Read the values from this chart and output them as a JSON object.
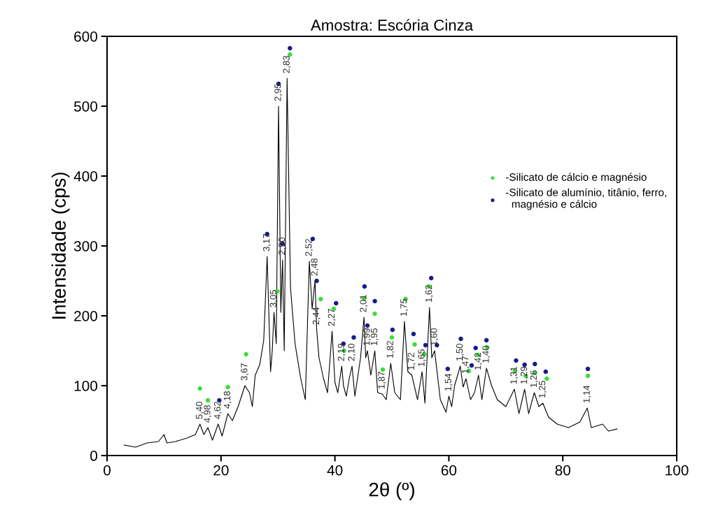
{
  "chart_data": {
    "type": "line",
    "title": "Amostra: Escória Cinza",
    "xlabel": "2θ (º)",
    "ylabel": "Intensidade (cps)",
    "xlim": [
      0,
      100
    ],
    "ylim": [
      0,
      600
    ],
    "xticks": [
      0,
      20,
      40,
      60,
      80,
      100
    ],
    "yticks": [
      0,
      100,
      200,
      300,
      400,
      500,
      600
    ],
    "grid": false,
    "legend": "right",
    "series": [
      {
        "type": "line",
        "color": "#000000",
        "marker": "none",
        "x": [
          3,
          5,
          7,
          9,
          10,
          10.5,
          12,
          14,
          15.5,
          16.3,
          17,
          17.7,
          18.5,
          19.5,
          20.2,
          21.2,
          22,
          23,
          24.2,
          25,
          25.5,
          26,
          26.8,
          27.5,
          28.1,
          28.7,
          29.0,
          29.3,
          29.7,
          30.1,
          30.5,
          30.8,
          31.1,
          31.6,
          32.2,
          33,
          34,
          34.8,
          35.5,
          36,
          36.5,
          36.8,
          37.2,
          38,
          38.7,
          39.5,
          40,
          40.5,
          41.2,
          41.5,
          42,
          42.5,
          43,
          43.5,
          44.5,
          45.1,
          45.4,
          45.7,
          46.3,
          47,
          47.5,
          48.3,
          49,
          49.8,
          50.5,
          51.5,
          52.2,
          52.8,
          53.5,
          54.5,
          55.3,
          55.8,
          56.6,
          57,
          57.5,
          58.5,
          59.5,
          60,
          60.5,
          61,
          62,
          62.5,
          63,
          63.8,
          64.5,
          65.2,
          65.8,
          66.6,
          67.5,
          68.5,
          70,
          71.5,
          72.3,
          73.3,
          74,
          75,
          75.8,
          76.5,
          77.5,
          79,
          81,
          83,
          84.3,
          85,
          87,
          88,
          89.5
        ],
        "values": [
          15,
          12,
          18,
          20,
          30,
          18,
          20,
          25,
          30,
          45,
          30,
          40,
          22,
          45,
          28,
          60,
          50,
          70,
          100,
          90,
          70,
          115,
          130,
          165,
          285,
          120,
          150,
          205,
          160,
          500,
          205,
          280,
          150,
          540,
          240,
          160,
          110,
          80,
          278,
          210,
          250,
          180,
          140,
          110,
          90,
          178,
          105,
          90,
          128,
          100,
          85,
          110,
          128,
          85,
          140,
          198,
          140,
          150,
          115,
          150,
          90,
          88,
          80,
          132,
          90,
          80,
          192,
          120,
          115,
          80,
          120,
          75,
          212,
          140,
          150,
          80,
          62,
          85,
          70,
          100,
          128,
          98,
          110,
          80,
          90,
          115,
          80,
          125,
          100,
          80,
          70,
          95,
          60,
          95,
          60,
          90,
          70,
          75,
          55,
          45,
          40,
          48,
          68,
          40,
          45,
          35,
          38
        ]
      },
      {
        "type": "scatter",
        "name": "-Silicato de cálcio e magnésio",
        "color": "#3ddc3d",
        "marker": "circle",
        "x": [
          16.3,
          17.7,
          21.2,
          24.4,
          29.9,
          32.1,
          37.5,
          39.8,
          41.6,
          45.1,
          47.0,
          48.4,
          50.0,
          52.4,
          54.0,
          55.7,
          56.5,
          63.5,
          65.1,
          66.7,
          71.6,
          73.5,
          75.1,
          77.2,
          84.4
        ],
        "values": [
          96,
          79,
          98,
          145,
          235,
          574,
          224,
          210,
          150,
          225,
          203,
          123,
          169,
          224,
          159,
          145,
          242,
          121,
          144,
          155,
          121,
          114,
          118,
          110,
          114
        ]
      },
      {
        "type": "scatter",
        "name": "-Silicato de alumínio, titânio, ferro,\n  magnésio e cálcio",
        "color": "#1a1a8c",
        "marker": "circle",
        "x": [
          19.7,
          28.1,
          30.1,
          30.8,
          32.1,
          36.1,
          36.8,
          40.2,
          41.5,
          43.3,
          45.2,
          45.7,
          47.0,
          50.1,
          53.8,
          55.9,
          56.9,
          57.9,
          59.8,
          62.1,
          64.0,
          64.7,
          66.6,
          71.8,
          73.3,
          75.1,
          77.0,
          84.4
        ],
        "values": [
          79,
          317,
          532,
          303,
          583,
          310,
          250,
          218,
          160,
          169,
          242,
          186,
          221,
          180,
          174,
          158,
          254,
          158,
          124,
          167,
          129,
          154,
          165,
          136,
          130,
          131,
          120,
          124
        ]
      }
    ],
    "annotations": [
      {
        "text": "5,40",
        "x": 16.3,
        "y": 45
      },
      {
        "text": "4,98",
        "x": 17.7,
        "y": 40
      },
      {
        "text": "4,62",
        "x": 19.5,
        "y": 45
      },
      {
        "text": "4,18",
        "x": 21.2,
        "y": 60
      },
      {
        "text": "3,67",
        "x": 24.2,
        "y": 100
      },
      {
        "text": "3,17",
        "x": 28.1,
        "y": 285
      },
      {
        "text": "3,05",
        "x": 29.3,
        "y": 205
      },
      {
        "text": "2,95",
        "x": 30.1,
        "y": 500
      },
      {
        "text": "2,90",
        "x": 30.8,
        "y": 280
      },
      {
        "text": "2,83",
        "x": 31.6,
        "y": 540
      },
      {
        "text": "2,52",
        "x": 35.5,
        "y": 278
      },
      {
        "text": "2,48",
        "x": 36.5,
        "y": 250
      },
      {
        "text": "2,44",
        "x": 36.8,
        "y": 180
      },
      {
        "text": "2,27",
        "x": 39.5,
        "y": 178
      },
      {
        "text": "2,19",
        "x": 41.2,
        "y": 128
      },
      {
        "text": "2,10",
        "x": 43,
        "y": 128
      },
      {
        "text": "2,01",
        "x": 45.1,
        "y": 198
      },
      {
        "text": "1,99",
        "x": 45.7,
        "y": 150
      },
      {
        "text": "1,95",
        "x": 47,
        "y": 150
      },
      {
        "text": "1,87",
        "x": 48.3,
        "y": 88
      },
      {
        "text": "1,82",
        "x": 49.8,
        "y": 132
      },
      {
        "text": "1,75",
        "x": 52.2,
        "y": 192
      },
      {
        "text": "1,72",
        "x": 53.5,
        "y": 115
      },
      {
        "text": "1,65",
        "x": 55.3,
        "y": 120
      },
      {
        "text": "1,62",
        "x": 56.6,
        "y": 212
      },
      {
        "text": "1,60",
        "x": 57.5,
        "y": 150
      },
      {
        "text": "1,54",
        "x": 60,
        "y": 85
      },
      {
        "text": "1,50",
        "x": 62,
        "y": 128
      },
      {
        "text": "1,47",
        "x": 63,
        "y": 110
      },
      {
        "text": "1,42",
        "x": 65.2,
        "y": 115
      },
      {
        "text": "1,40",
        "x": 66.6,
        "y": 125
      },
      {
        "text": "1,31",
        "x": 71.5,
        "y": 95
      },
      {
        "text": "1,29",
        "x": 73.3,
        "y": 95
      },
      {
        "text": "1,26",
        "x": 75,
        "y": 90
      },
      {
        "text": "1,25",
        "x": 76.5,
        "y": 75
      },
      {
        "text": "1,14",
        "x": 84.3,
        "y": 68
      }
    ]
  }
}
